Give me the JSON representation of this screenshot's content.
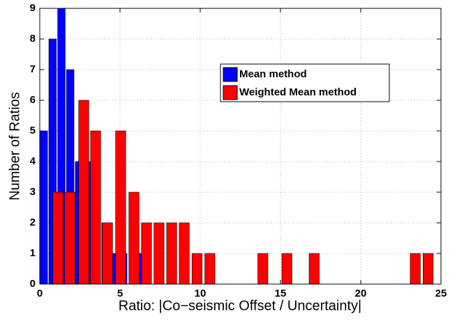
{
  "chart_data": {
    "type": "bar",
    "xlabel": "Ratio: |Co−seismic Offset / Uncertainty|",
    "ylabel": "Number of Ratios",
    "xlim": [
      0,
      25
    ],
    "xticks": [
      0,
      5,
      10,
      15,
      20,
      25
    ],
    "ylim": [
      0,
      9
    ],
    "yticks": [
      0,
      1,
      2,
      3,
      4,
      5,
      6,
      7,
      8,
      9
    ],
    "grid": true,
    "legend": "upper right",
    "series": [
      {
        "name": "Mean method",
        "color": "#0000ff",
        "x": [
          0.25,
          0.8,
          1.35,
          1.9,
          2.45,
          3.0,
          3.55,
          4.1,
          4.65,
          5.2,
          5.75,
          6.3
        ],
        "values": [
          5,
          8,
          9,
          7,
          4,
          4,
          3,
          2,
          1,
          1,
          0,
          1
        ]
      },
      {
        "name": "Weighted Mean method",
        "color": "#ff0000",
        "x": [
          1.13,
          1.87,
          2.74,
          3.48,
          4.22,
          5.04,
          5.87,
          6.65,
          7.43,
          8.22,
          9.0,
          9.8,
          10.6,
          13.9,
          15.4,
          17.1,
          23.4,
          24.2
        ],
        "values": [
          3,
          3,
          6,
          5,
          2,
          5,
          3,
          2,
          2,
          2,
          2,
          1,
          1,
          1,
          1,
          1,
          1,
          1
        ]
      }
    ]
  }
}
